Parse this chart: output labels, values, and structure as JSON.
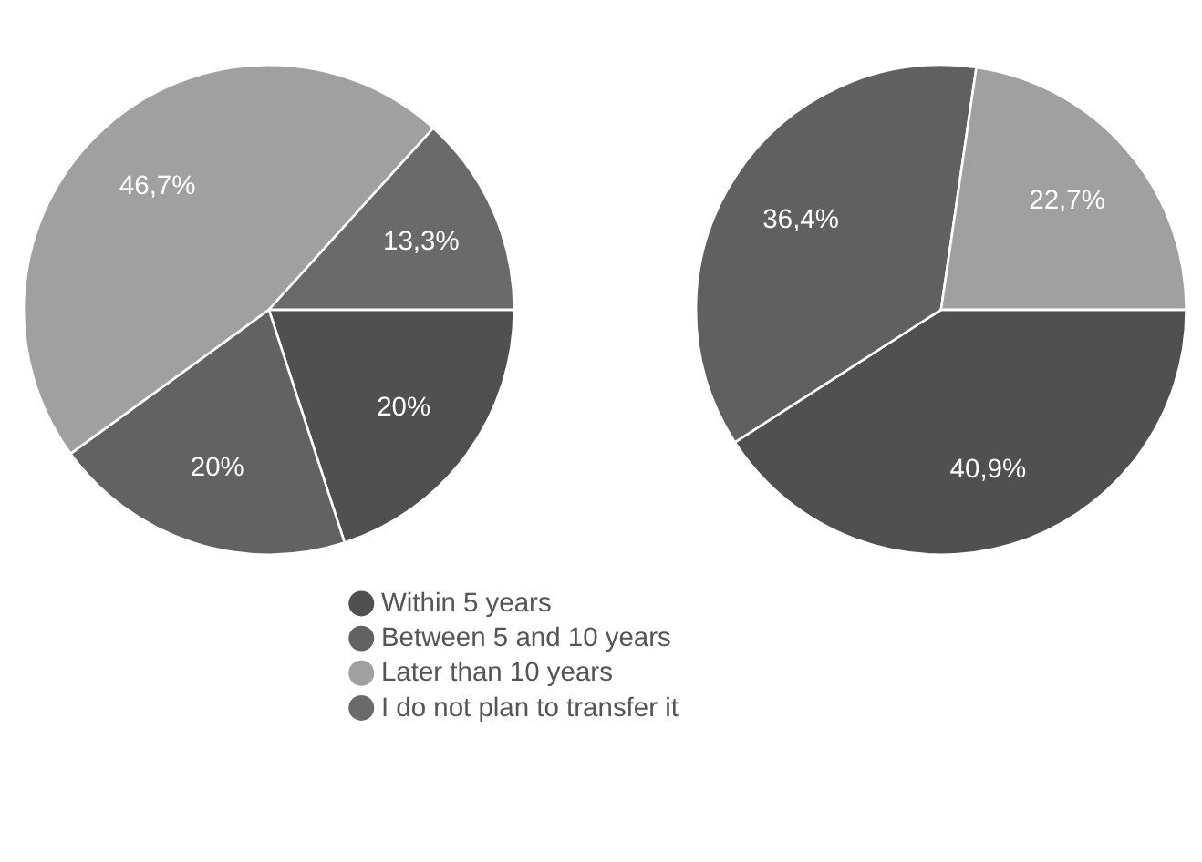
{
  "chart_data": [
    {
      "type": "pie",
      "categories": [
        "Within 5 years",
        "Between 5 and 10 years",
        "Later than 10 years",
        "I do not plan to transfer it"
      ],
      "values": [
        20,
        20,
        46.7,
        13.3
      ],
      "colors": [
        "#505050",
        "#626262",
        "#a0a0a0",
        "#6a6a6a"
      ],
      "value_labels": [
        "20%",
        "20%",
        "46,7%",
        "13,3%"
      ],
      "legend": "bottom"
    },
    {
      "type": "pie",
      "categories": [
        null,
        null,
        null
      ],
      "values": [
        40.9,
        36.4,
        22.7
      ],
      "colors": [
        "#505050",
        "#606060",
        "#a0a0a0"
      ],
      "value_labels": [
        "40,9%",
        "36,4%",
        "22,7%"
      ],
      "legend": false
    }
  ]
}
